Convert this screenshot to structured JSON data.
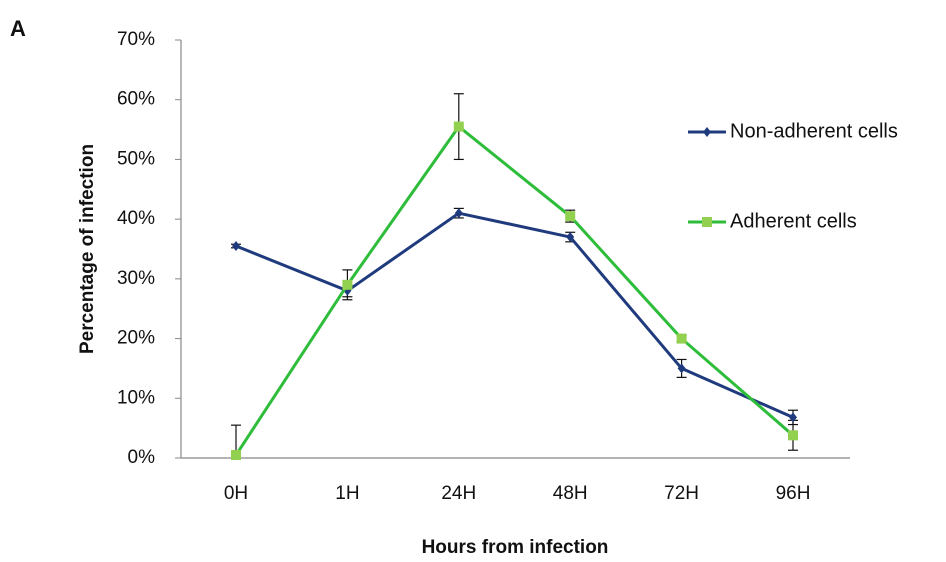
{
  "chart_data": {
    "type": "line",
    "panel_label": "A",
    "xlabel": "Hours from infection",
    "ylabel": "Percentage of infection",
    "categories": [
      "0H",
      "1H",
      "24H",
      "48H",
      "72H",
      "96H"
    ],
    "series": [
      {
        "name": "Non-adherent cells",
        "color": "#1f3b7d",
        "marker": "diamond",
        "values": [
          35.5,
          28,
          41,
          37,
          15,
          6.8
        ],
        "errors": [
          0.3,
          1,
          0.8,
          0.8,
          1.5,
          1.2
        ]
      },
      {
        "name": "Adherent cells",
        "color": "#2ebd3a",
        "marker_color": "#92d050",
        "marker": "square",
        "values": [
          0.5,
          29,
          55.5,
          40.5,
          20,
          3.8
        ],
        "errors": [
          5,
          2.5,
          5.5,
          1,
          0.5,
          2.5
        ]
      }
    ],
    "ylim": [
      0,
      70
    ],
    "yticks": [
      {
        "value": 0,
        "label": "0%"
      },
      {
        "value": 10,
        "label": "10%"
      },
      {
        "value": 20,
        "label": "20%"
      },
      {
        "value": 30,
        "label": "30%"
      },
      {
        "value": 40,
        "label": "40%"
      },
      {
        "value": 50,
        "label": "50%"
      },
      {
        "value": 60,
        "label": "60%"
      },
      {
        "value": 70,
        "label": "70%"
      }
    ],
    "grid": false,
    "legend": "right"
  }
}
